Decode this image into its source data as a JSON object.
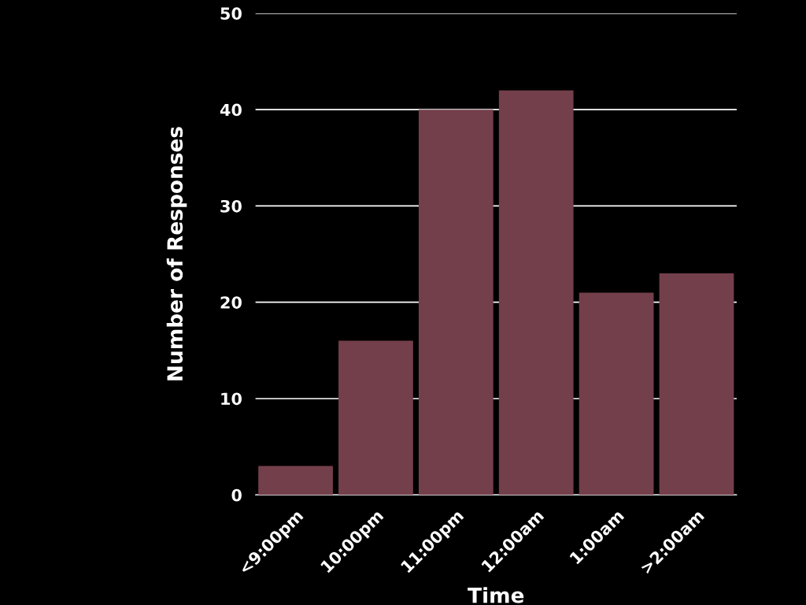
{
  "chart_data": {
    "type": "bar",
    "xlabel": "Time",
    "ylabel": "Number of Responses",
    "categories": [
      "<9:00pm",
      "10:00pm",
      "11:00pm",
      "12:00am",
      "1:00am",
      ">2:00am"
    ],
    "values": [
      3,
      16,
      40,
      42,
      21,
      23
    ],
    "color": "#733f4b",
    "ylim": [
      0,
      50
    ],
    "yticks": [
      0,
      10,
      20,
      30,
      40,
      50
    ],
    "grid": "y"
  }
}
